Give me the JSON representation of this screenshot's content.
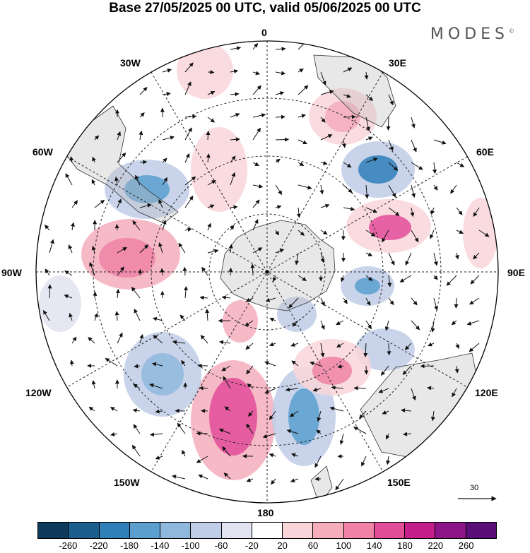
{
  "title": "Base 27/05/2025 00 UTC, valid 05/06/2025 00 UTC",
  "brand": "MODES",
  "brand_mark": "©",
  "map_labels": {
    "lon_0": "0",
    "lon_30w": "30W",
    "lon_30e": "30E",
    "lon_60w": "60W",
    "lon_60e": "60E",
    "lon_90w": "90W",
    "lon_90e": "90E",
    "lon_120w": "120W",
    "lon_120e": "120E",
    "lon_150w": "150W",
    "lon_150e": "150E",
    "lon_180": "180"
  },
  "wind_scale_value": "30",
  "colorbar": {
    "colors": [
      "#0e3a5c",
      "#1c5f8e",
      "#2f7fb8",
      "#5b9fcf",
      "#90b8dd",
      "#bfcde8",
      "#e2e3f0",
      "#ffffff",
      "#f9d5da",
      "#f5adbc",
      "#ef82a6",
      "#e24c99",
      "#c41f8a",
      "#8c1587",
      "#5a0f78"
    ],
    "ticks": [
      "-260",
      "-220",
      "-180",
      "-140",
      "-100",
      "-60",
      "-20",
      "20",
      "60",
      "100",
      "140",
      "180",
      "220",
      "260"
    ]
  }
}
